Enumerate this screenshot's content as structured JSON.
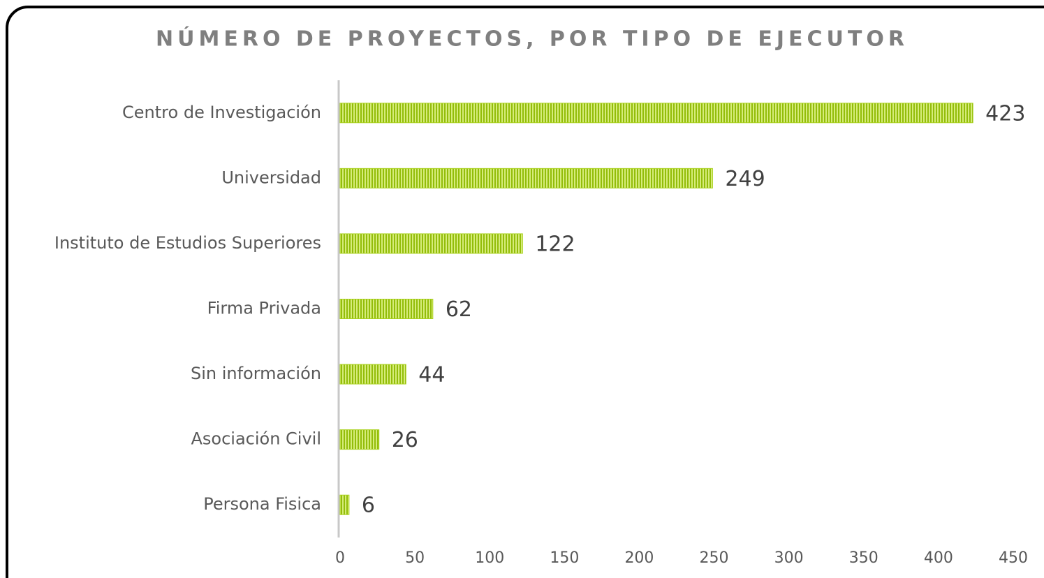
{
  "chart_data": {
    "type": "bar",
    "orientation": "horizontal",
    "title": "NÚMERO DE PROYECTOS, POR TIPO DE EJECUTOR",
    "categories": [
      "Centro de Investigación",
      "Universidad",
      "Instituto de Estudios Superiores",
      "Firma Privada",
      "Sin información",
      "Asociación Civil",
      "Persona Fisica"
    ],
    "values": [
      423,
      249,
      122,
      62,
      44,
      26,
      6
    ],
    "color": "#a9d11c",
    "xlim": [
      0,
      450
    ],
    "xticks": [
      0,
      50,
      100,
      150,
      200,
      250,
      300,
      350,
      400,
      450
    ],
    "grid": false
  }
}
